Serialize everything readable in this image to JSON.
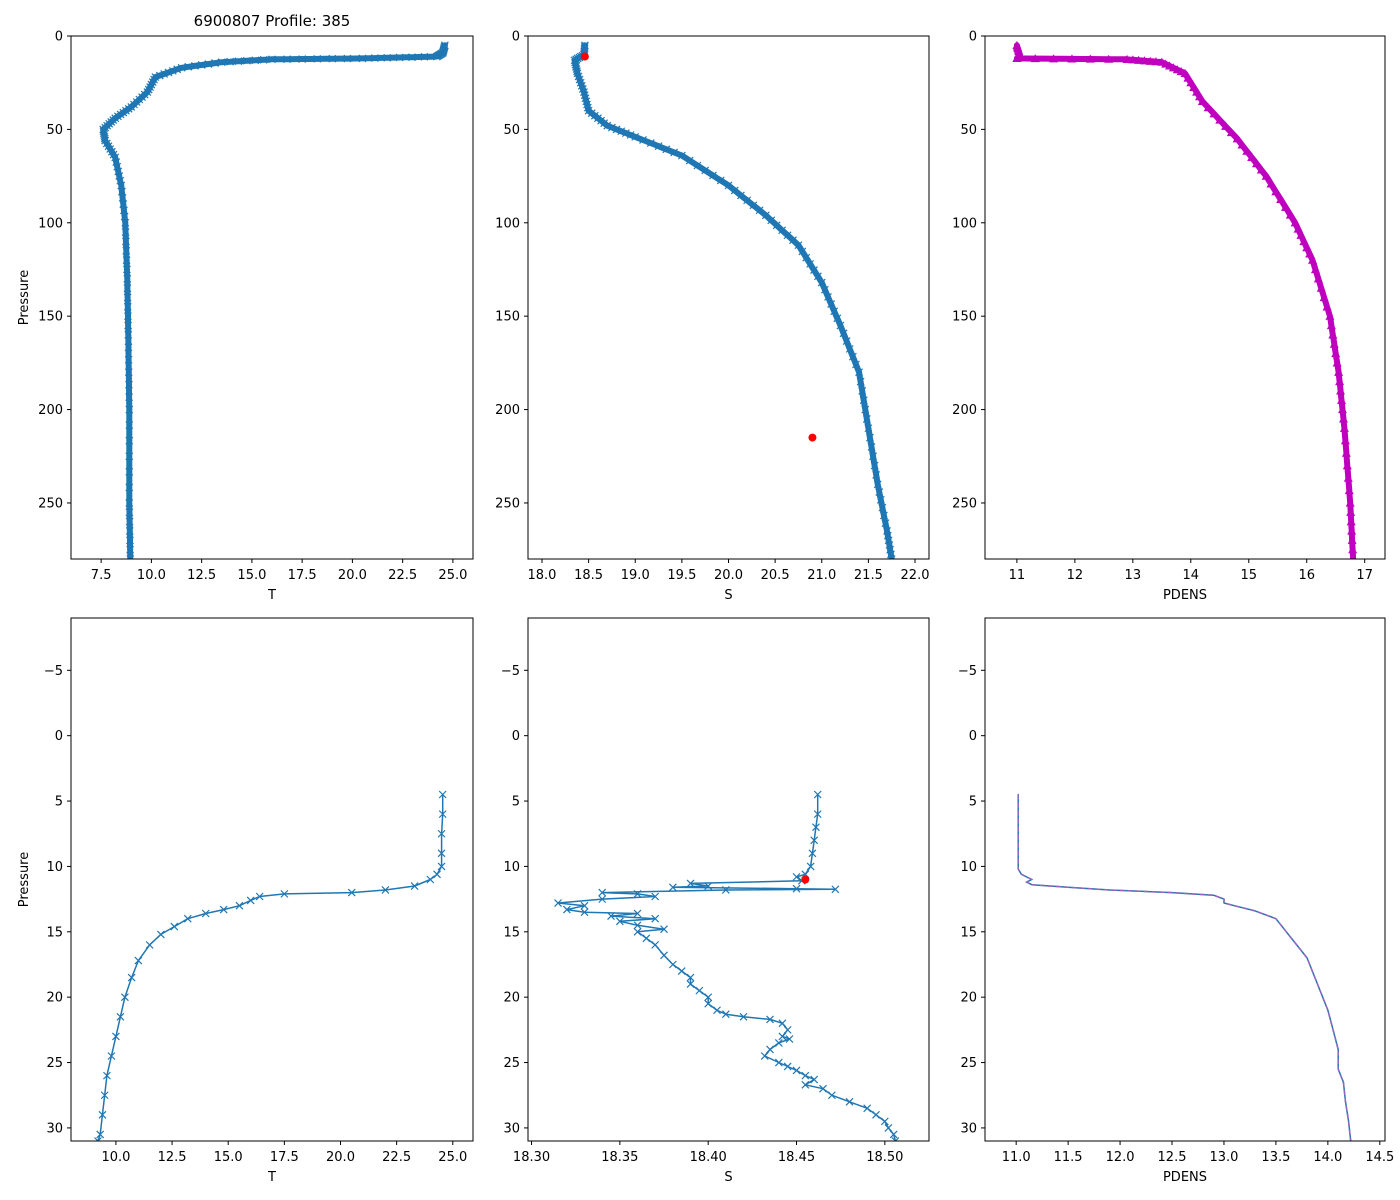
{
  "figure_title": "6900807 Profile: 385",
  "colors": {
    "primary": "#1f77b4",
    "density": "#bf00bf",
    "flag": "#ff0000",
    "dashed": "#9467bd"
  },
  "chart_data": [
    {
      "id": "temp-full",
      "type": "line",
      "xlabel": "T",
      "ylabel": "Pressure",
      "xlim": [
        6.0,
        26.0
      ],
      "ylim": [
        0,
        280
      ],
      "xticks": [
        "7.5",
        "10.0",
        "12.5",
        "15.0",
        "17.5",
        "20.0",
        "22.5",
        "25.0"
      ],
      "xtick_values": [
        7.5,
        10.0,
        12.5,
        15.0,
        17.5,
        20.0,
        22.5,
        25.0
      ],
      "yticks": [
        "0",
        "50",
        "100",
        "150",
        "200",
        "250"
      ],
      "ytick_values": [
        0,
        50,
        100,
        150,
        200,
        250
      ],
      "marker": "x",
      "color": "#1f77b4",
      "dense": true,
      "series": [
        {
          "name": "T",
          "points": [
            [
              24.6,
              5
            ],
            [
              24.5,
              9
            ],
            [
              24.2,
              11
            ],
            [
              20.5,
              12
            ],
            [
              16.0,
              12.5
            ],
            [
              13.5,
              14
            ],
            [
              11.5,
              17
            ],
            [
              10.2,
              22
            ],
            [
              9.8,
              30
            ],
            [
              9.0,
              38
            ],
            [
              8.2,
              44
            ],
            [
              7.6,
              50
            ],
            [
              7.7,
              56
            ],
            [
              8.2,
              65
            ],
            [
              8.5,
              80
            ],
            [
              8.7,
              100
            ],
            [
              8.8,
              130
            ],
            [
              8.85,
              160
            ],
            [
              8.9,
              200
            ],
            [
              8.9,
              250
            ],
            [
              8.95,
              280
            ]
          ]
        }
      ]
    },
    {
      "id": "sal-full",
      "type": "line",
      "xlabel": "S",
      "ylabel": "",
      "xlim": [
        17.85,
        22.15
      ],
      "ylim": [
        0,
        280
      ],
      "xticks": [
        "18.0",
        "18.5",
        "19.0",
        "19.5",
        "20.0",
        "20.5",
        "21.0",
        "21.5",
        "22.0"
      ],
      "xtick_values": [
        18.0,
        18.5,
        19.0,
        19.5,
        20.0,
        20.5,
        21.0,
        21.5,
        22.0
      ],
      "yticks": [
        "0",
        "50",
        "100",
        "150",
        "200",
        "250"
      ],
      "ytick_values": [
        0,
        50,
        100,
        150,
        200,
        250
      ],
      "marker": "x",
      "color": "#1f77b4",
      "dense": true,
      "series": [
        {
          "name": "S",
          "points": [
            [
              18.46,
              5
            ],
            [
              18.45,
              10
            ],
            [
              18.35,
              13
            ],
            [
              18.38,
              20
            ],
            [
              18.45,
              30
            ],
            [
              18.5,
              40
            ],
            [
              18.7,
              48
            ],
            [
              19.0,
              54
            ],
            [
              19.5,
              64
            ],
            [
              20.0,
              80
            ],
            [
              20.4,
              96
            ],
            [
              20.75,
              112
            ],
            [
              21.0,
              132
            ],
            [
              21.2,
              155
            ],
            [
              21.4,
              180
            ],
            [
              21.5,
              210
            ],
            [
              21.6,
              240
            ],
            [
              21.7,
              265
            ],
            [
              21.75,
              280
            ]
          ]
        }
      ],
      "flags": [
        [
          18.46,
          11
        ],
        [
          20.9,
          215
        ]
      ]
    },
    {
      "id": "pdens-full",
      "type": "line",
      "xlabel": "PDENS",
      "ylabel": "",
      "xlim": [
        10.45,
        17.35
      ],
      "ylim": [
        0,
        280
      ],
      "xticks": [
        "11",
        "12",
        "13",
        "14",
        "15",
        "16",
        "17"
      ],
      "xtick_values": [
        11,
        12,
        13,
        14,
        15,
        16,
        17
      ],
      "yticks": [
        "0",
        "50",
        "100",
        "150",
        "200",
        "250"
      ],
      "ytick_values": [
        0,
        50,
        100,
        150,
        200,
        250
      ],
      "marker": "triangle",
      "color": "#bf00bf",
      "dense": true,
      "series": [
        {
          "name": "PDENS",
          "points": [
            [
              11.0,
              5
            ],
            [
              11.05,
              10
            ],
            [
              11.0,
              12
            ],
            [
              12.9,
              12.5
            ],
            [
              13.5,
              14
            ],
            [
              13.9,
              20
            ],
            [
              14.2,
              35
            ],
            [
              14.8,
              55
            ],
            [
              15.3,
              75
            ],
            [
              15.8,
              100
            ],
            [
              16.1,
              120
            ],
            [
              16.4,
              150
            ],
            [
              16.55,
              180
            ],
            [
              16.65,
              210
            ],
            [
              16.75,
              250
            ],
            [
              16.8,
              280
            ]
          ]
        }
      ]
    },
    {
      "id": "temp-zoom",
      "type": "line",
      "xlabel": "T",
      "ylabel": "Pressure",
      "xlim": [
        8.0,
        25.9
      ],
      "ylim": [
        -9,
        31
      ],
      "xticks": [
        "10.0",
        "12.5",
        "15.0",
        "17.5",
        "20.0",
        "22.5",
        "25.0"
      ],
      "xtick_values": [
        10.0,
        12.5,
        15.0,
        17.5,
        20.0,
        22.5,
        25.0
      ],
      "yticks": [
        "−5",
        "0",
        "5",
        "10",
        "15",
        "20",
        "25",
        "30"
      ],
      "ytick_values": [
        -5,
        0,
        5,
        10,
        15,
        20,
        25,
        30
      ],
      "marker": "x",
      "color": "#1f77b4",
      "dense": false,
      "series": [
        {
          "name": "T",
          "points": [
            [
              24.55,
              4.5
            ],
            [
              24.55,
              6
            ],
            [
              24.5,
              7.5
            ],
            [
              24.5,
              9
            ],
            [
              24.5,
              10
            ],
            [
              24.3,
              10.6
            ],
            [
              24.0,
              11.0
            ],
            [
              23.3,
              11.5
            ],
            [
              22.0,
              11.8
            ],
            [
              20.5,
              12.0
            ],
            [
              17.5,
              12.1
            ],
            [
              16.4,
              12.3
            ],
            [
              16.0,
              12.6
            ],
            [
              15.5,
              13.0
            ],
            [
              14.8,
              13.3
            ],
            [
              14.0,
              13.6
            ],
            [
              13.2,
              14.0
            ],
            [
              12.6,
              14.6
            ],
            [
              12.0,
              15.2
            ],
            [
              11.5,
              16.0
            ],
            [
              11.0,
              17.2
            ],
            [
              10.7,
              18.5
            ],
            [
              10.4,
              20
            ],
            [
              10.2,
              21.5
            ],
            [
              10.0,
              23.0
            ],
            [
              9.8,
              24.5
            ],
            [
              9.6,
              26
            ],
            [
              9.5,
              27.5
            ],
            [
              9.4,
              29
            ],
            [
              9.3,
              30.5
            ],
            [
              9.2,
              31
            ]
          ]
        }
      ]
    },
    {
      "id": "sal-zoom",
      "type": "line",
      "xlabel": "S",
      "ylabel": "",
      "xlim": [
        18.298,
        18.525
      ],
      "ylim": [
        -9,
        31
      ],
      "xticks": [
        "18.30",
        "18.35",
        "18.40",
        "18.45",
        "18.50"
      ],
      "xtick_values": [
        18.3,
        18.35,
        18.4,
        18.45,
        18.5
      ],
      "yticks": [
        "−5",
        "0",
        "5",
        "10",
        "15",
        "20",
        "25",
        "30"
      ],
      "ytick_values": [
        -5,
        0,
        5,
        10,
        15,
        20,
        25,
        30
      ],
      "marker": "x",
      "color": "#1f77b4",
      "dense": false,
      "series": [
        {
          "name": "S",
          "points": [
            [
              18.462,
              4.5
            ],
            [
              18.462,
              6
            ],
            [
              18.461,
              7
            ],
            [
              18.46,
              8
            ],
            [
              18.459,
              9
            ],
            [
              18.458,
              10
            ],
            [
              18.455,
              10.6
            ],
            [
              18.45,
              10.8
            ],
            [
              18.453,
              11.1
            ],
            [
              18.39,
              11.3
            ],
            [
              18.4,
              11.5
            ],
            [
              18.38,
              11.6
            ],
            [
              18.45,
              11.7
            ],
            [
              18.472,
              11.75
            ],
            [
              18.41,
              11.8
            ],
            [
              18.34,
              12.0
            ],
            [
              18.36,
              12.1
            ],
            [
              18.37,
              12.3
            ],
            [
              18.34,
              12.5
            ],
            [
              18.315,
              12.8
            ],
            [
              18.33,
              13.0
            ],
            [
              18.32,
              13.3
            ],
            [
              18.33,
              13.5
            ],
            [
              18.36,
              13.6
            ],
            [
              18.345,
              13.8
            ],
            [
              18.37,
              14.0
            ],
            [
              18.35,
              14.2
            ],
            [
              18.36,
              14.5
            ],
            [
              18.375,
              14.8
            ],
            [
              18.36,
              15.0
            ],
            [
              18.365,
              15.5
            ],
            [
              18.37,
              16.0
            ],
            [
              18.375,
              16.8
            ],
            [
              18.38,
              17.5
            ],
            [
              18.385,
              18.0
            ],
            [
              18.39,
              18.5
            ],
            [
              18.39,
              19.0
            ],
            [
              18.395,
              19.5
            ],
            [
              18.4,
              20.0
            ],
            [
              18.4,
              20.5
            ],
            [
              18.405,
              21.0
            ],
            [
              18.41,
              21.3
            ],
            [
              18.42,
              21.5
            ],
            [
              18.435,
              21.7
            ],
            [
              18.442,
              22.0
            ],
            [
              18.445,
              22.5
            ],
            [
              18.442,
              23.0
            ],
            [
              18.446,
              23.2
            ],
            [
              18.44,
              23.5
            ],
            [
              18.435,
              24.0
            ],
            [
              18.432,
              24.5
            ],
            [
              18.44,
              25.0
            ],
            [
              18.445,
              25.3
            ],
            [
              18.45,
              25.6
            ],
            [
              18.455,
              26.0
            ],
            [
              18.46,
              26.3
            ],
            [
              18.455,
              26.7
            ],
            [
              18.465,
              27.0
            ],
            [
              18.47,
              27.5
            ],
            [
              18.48,
              28.0
            ],
            [
              18.49,
              28.5
            ],
            [
              18.495,
              29.0
            ],
            [
              18.5,
              29.5
            ],
            [
              18.502,
              30.0
            ],
            [
              18.505,
              30.5
            ],
            [
              18.506,
              31
            ]
          ]
        }
      ],
      "flags": [
        [
          18.455,
          11.0
        ]
      ]
    },
    {
      "id": "pdens-zoom",
      "type": "line",
      "xlabel": "PDENS",
      "ylabel": "",
      "xlim": [
        10.7,
        14.55
      ],
      "ylim": [
        -9,
        31
      ],
      "xticks": [
        "11.0",
        "11.5",
        "12.0",
        "12.5",
        "13.0",
        "13.5",
        "14.0",
        "14.5"
      ],
      "xtick_values": [
        11.0,
        11.5,
        12.0,
        12.5,
        13.0,
        13.5,
        14.0,
        14.5
      ],
      "yticks": [
        "−5",
        "0",
        "5",
        "10",
        "15",
        "20",
        "25",
        "30"
      ],
      "ytick_values": [
        -5,
        0,
        5,
        10,
        15,
        20,
        25,
        30
      ],
      "marker": "none",
      "color": "#1f77b4",
      "dense": false,
      "dashed_overlay": true,
      "series": [
        {
          "name": "PDENS",
          "points": [
            [
              11.02,
              4.5
            ],
            [
              11.02,
              6
            ],
            [
              11.02,
              8
            ],
            [
              11.02,
              10.2
            ],
            [
              11.05,
              10.6
            ],
            [
              11.15,
              11.0
            ],
            [
              11.1,
              11.2
            ],
            [
              11.15,
              11.4
            ],
            [
              11.5,
              11.6
            ],
            [
              11.9,
              11.8
            ],
            [
              12.5,
              12.0
            ],
            [
              12.9,
              12.2
            ],
            [
              13.0,
              12.5
            ],
            [
              13.0,
              12.8
            ],
            [
              13.1,
              13.0
            ],
            [
              13.3,
              13.4
            ],
            [
              13.5,
              14.0
            ],
            [
              13.6,
              15.0
            ],
            [
              13.7,
              16.0
            ],
            [
              13.8,
              17.0
            ],
            [
              13.9,
              19.0
            ],
            [
              14.0,
              21.0
            ],
            [
              14.05,
              22.5
            ],
            [
              14.1,
              24.0
            ],
            [
              14.1,
              25.5
            ],
            [
              14.15,
              26.5
            ],
            [
              14.17,
              28.0
            ],
            [
              14.2,
              29.5
            ],
            [
              14.22,
              31
            ]
          ]
        }
      ]
    }
  ]
}
